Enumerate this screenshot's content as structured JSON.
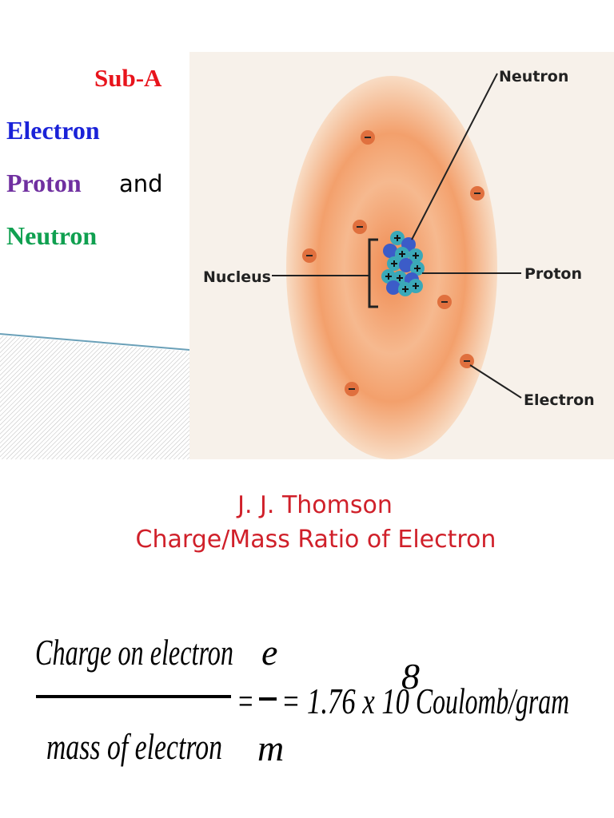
{
  "slide_top": {
    "heading": "Sub-A",
    "items": {
      "electron": "Electron",
      "proton": "Proton",
      "and": "and",
      "neutron": "Neutron"
    }
  },
  "diagram": {
    "labels": {
      "neutron": "Neutron",
      "nucleus": "Nucleus",
      "proton": "Proton",
      "electron": "Electron"
    }
  },
  "slide_bottom": {
    "title": "J. J. Thomson",
    "subtitle": "Charge/Mass Ratio of Electron",
    "formula": {
      "numerator": "Charge on electron",
      "denominator": "mass of electron",
      "symbol_numerator": "e",
      "symbol_denominator": "m",
      "equals": "=",
      "value": "= 1.76 x 10",
      "exponent": "8",
      "unit": "Coulomb/gram"
    }
  }
}
